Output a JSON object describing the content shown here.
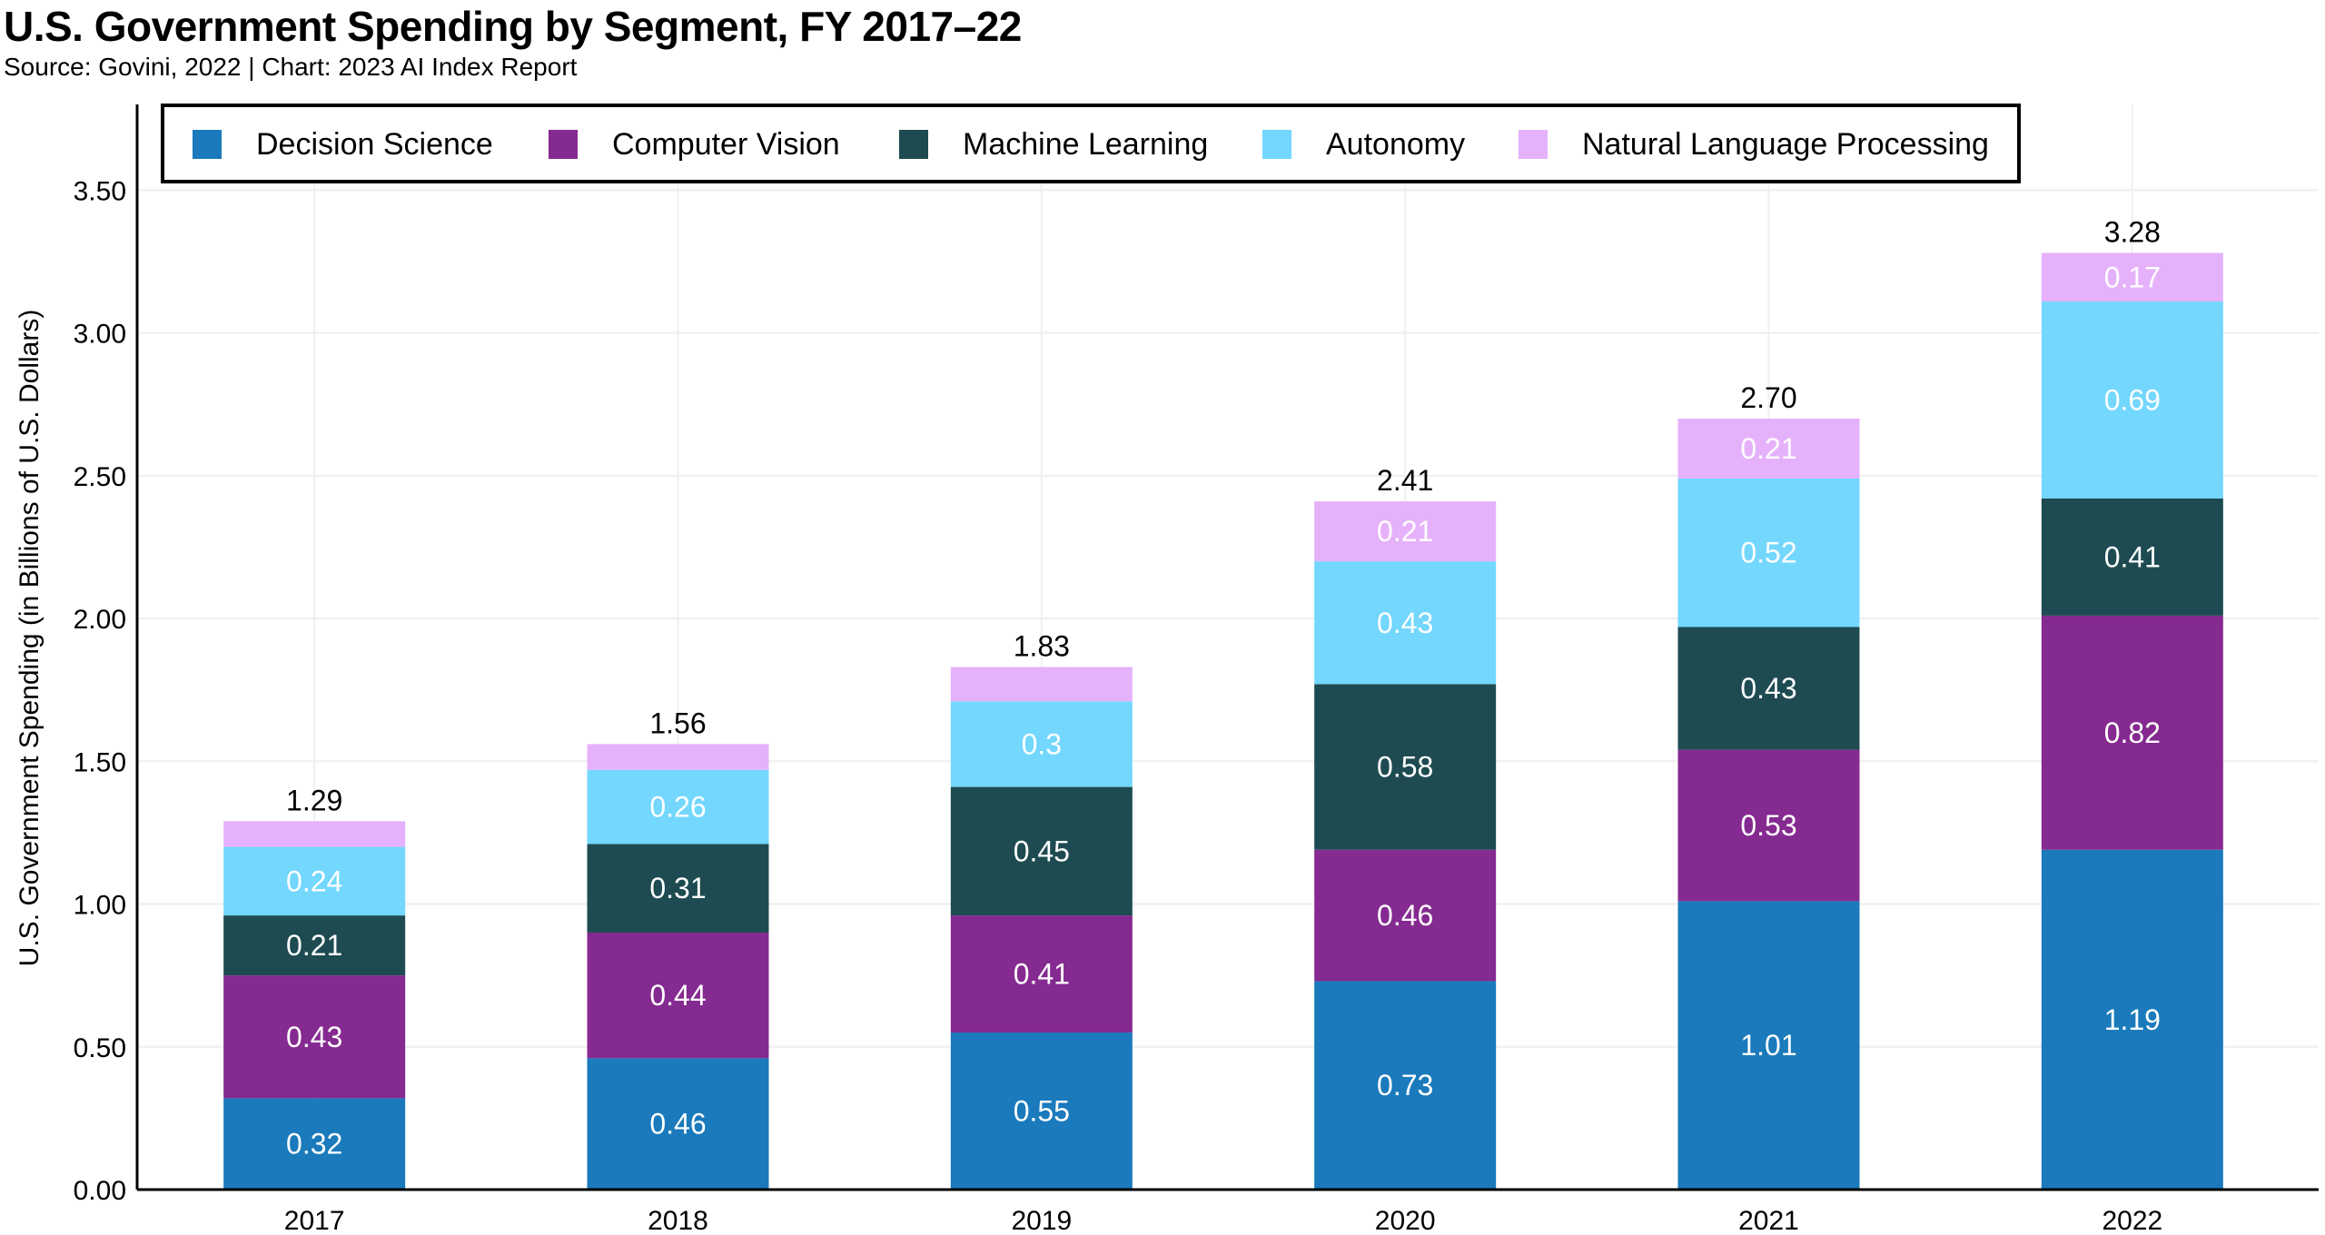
{
  "chart_data": {
    "type": "bar",
    "stacked": true,
    "title": "U.S. Government Spending by Segment, FY 2017–22",
    "subtitle": "Source: Govini, 2022 | Chart: 2023 AI Index Report",
    "xlabel": "",
    "ylabel": "U.S. Government Spending (in Billions of U.S. Dollars)",
    "ylim": [
      0,
      3.8
    ],
    "yticks": [
      "0.00",
      "0.50",
      "1.00",
      "1.50",
      "2.00",
      "2.50",
      "3.00",
      "3.50"
    ],
    "grid": true,
    "legend_placement": "top",
    "categories": [
      "2017",
      "2018",
      "2019",
      "2020",
      "2021",
      "2022"
    ],
    "totals": [
      "1.29",
      "1.56",
      "1.83",
      "2.41",
      "2.70",
      "3.28"
    ],
    "series": [
      {
        "name": "Decision Science",
        "color": "#1a7abb",
        "values": [
          0.32,
          0.46,
          0.55,
          0.73,
          1.01,
          1.19
        ],
        "labels": [
          "0.32",
          "0.46",
          "0.55",
          "0.73",
          "1.01",
          "1.19"
        ]
      },
      {
        "name": "Computer Vision",
        "color": "#852a90",
        "values": [
          0.43,
          0.44,
          0.41,
          0.46,
          0.53,
          0.82
        ],
        "labels": [
          "0.43",
          "0.44",
          "0.41",
          "0.46",
          "0.53",
          "0.82"
        ]
      },
      {
        "name": "Machine Learning",
        "color": "#1e4b52",
        "values": [
          0.21,
          0.31,
          0.45,
          0.58,
          0.43,
          0.41
        ],
        "labels": [
          "0.21",
          "0.31",
          "0.45",
          "0.58",
          "0.43",
          "0.41"
        ]
      },
      {
        "name": "Autonomy",
        "color": "#73d7fe",
        "values": [
          0.24,
          0.26,
          0.3,
          0.43,
          0.52,
          0.69
        ],
        "labels": [
          "0.24",
          "0.26",
          "0.3",
          "0.43",
          "0.52",
          "0.69"
        ]
      },
      {
        "name": "Natural Language Processing",
        "color": "#e6b1fb",
        "values": [
          0.09,
          0.09,
          0.12,
          0.21,
          0.21,
          0.17
        ],
        "labels": [
          "",
          "",
          "",
          "0.21",
          "0.21",
          "0.17"
        ]
      }
    ]
  }
}
